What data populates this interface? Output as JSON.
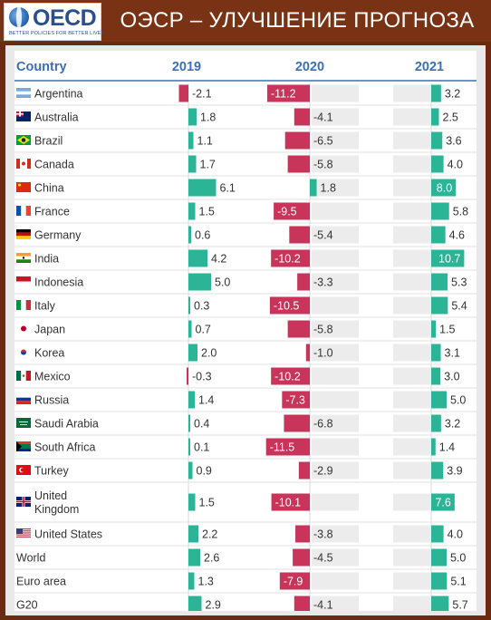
{
  "header": {
    "logo_text": "OECD",
    "logo_tagline": "BETTER POLICIES FOR BETTER LIVES",
    "title": "ОЭСР – УЛУЧШЕНИЕ ПРОГНОЗА"
  },
  "colors": {
    "positive": "#2bb596",
    "negative": "#c8345a",
    "track": "#ececec",
    "header_text": "#3d6fb6"
  },
  "chart_data": {
    "type": "table",
    "columns": [
      "Country",
      "2019",
      "2020",
      "2021"
    ],
    "rows": [
      {
        "country": "Argentina",
        "flag": "flag-argentina",
        "v2019": -2.1,
        "v2020": -11.2,
        "v2021": 3.2
      },
      {
        "country": "Australia",
        "flag": "flag-australia",
        "v2019": 1.8,
        "v2020": -4.1,
        "v2021": 2.5
      },
      {
        "country": "Brazil",
        "flag": "flag-brazil",
        "v2019": 1.1,
        "v2020": -6.5,
        "v2021": 3.6
      },
      {
        "country": "Canada",
        "flag": "flag-canada",
        "v2019": 1.7,
        "v2020": -5.8,
        "v2021": 4.0
      },
      {
        "country": "China",
        "flag": "flag-china",
        "v2019": 6.1,
        "v2020": 1.8,
        "v2021": 8.0
      },
      {
        "country": "France",
        "flag": "flag-france",
        "v2019": 1.5,
        "v2020": -9.5,
        "v2021": 5.8
      },
      {
        "country": "Germany",
        "flag": "flag-germany",
        "v2019": 0.6,
        "v2020": -5.4,
        "v2021": 4.6
      },
      {
        "country": "India",
        "flag": "flag-india",
        "v2019": 4.2,
        "v2020": -10.2,
        "v2021": 10.7
      },
      {
        "country": "Indonesia",
        "flag": "flag-indonesia",
        "v2019": 5.0,
        "v2020": -3.3,
        "v2021": 5.3
      },
      {
        "country": "Italy",
        "flag": "flag-italy",
        "v2019": 0.3,
        "v2020": -10.5,
        "v2021": 5.4
      },
      {
        "country": "Japan",
        "flag": "flag-japan",
        "v2019": 0.7,
        "v2020": -5.8,
        "v2021": 1.5
      },
      {
        "country": "Korea",
        "flag": "flag-korea",
        "v2019": 2.0,
        "v2020": -1.0,
        "v2021": 3.1
      },
      {
        "country": "Mexico",
        "flag": "flag-mexico",
        "v2019": -0.3,
        "v2020": -10.2,
        "v2021": 3.0
      },
      {
        "country": "Russia",
        "flag": "flag-russia",
        "v2019": 1.4,
        "v2020": -7.3,
        "v2021": 5.0
      },
      {
        "country": "Saudi Arabia",
        "flag": "flag-saudi-arabia",
        "v2019": 0.4,
        "v2020": -6.8,
        "v2021": 3.2
      },
      {
        "country": "South Africa",
        "flag": "flag-south-africa",
        "v2019": 0.1,
        "v2020": -11.5,
        "v2021": 1.4
      },
      {
        "country": "Turkey",
        "flag": "flag-turkey",
        "v2019": 0.9,
        "v2020": -2.9,
        "v2021": 3.9
      },
      {
        "country": "United Kingdom",
        "flag": "flag-united-kingdom",
        "v2019": 1.5,
        "v2020": -10.1,
        "v2021": 7.6
      },
      {
        "country": "United States",
        "flag": "flag-united-states",
        "v2019": 2.2,
        "v2020": -3.8,
        "v2021": 4.0
      },
      {
        "country": "World",
        "flag": "",
        "v2019": 2.6,
        "v2020": -4.5,
        "v2021": 5.0
      },
      {
        "country": "Euro area",
        "flag": "",
        "v2019": 1.3,
        "v2020": -7.9,
        "v2021": 5.1
      },
      {
        "country": "G20",
        "flag": "",
        "v2019": 2.9,
        "v2020": -4.1,
        "v2021": 5.7
      }
    ]
  }
}
